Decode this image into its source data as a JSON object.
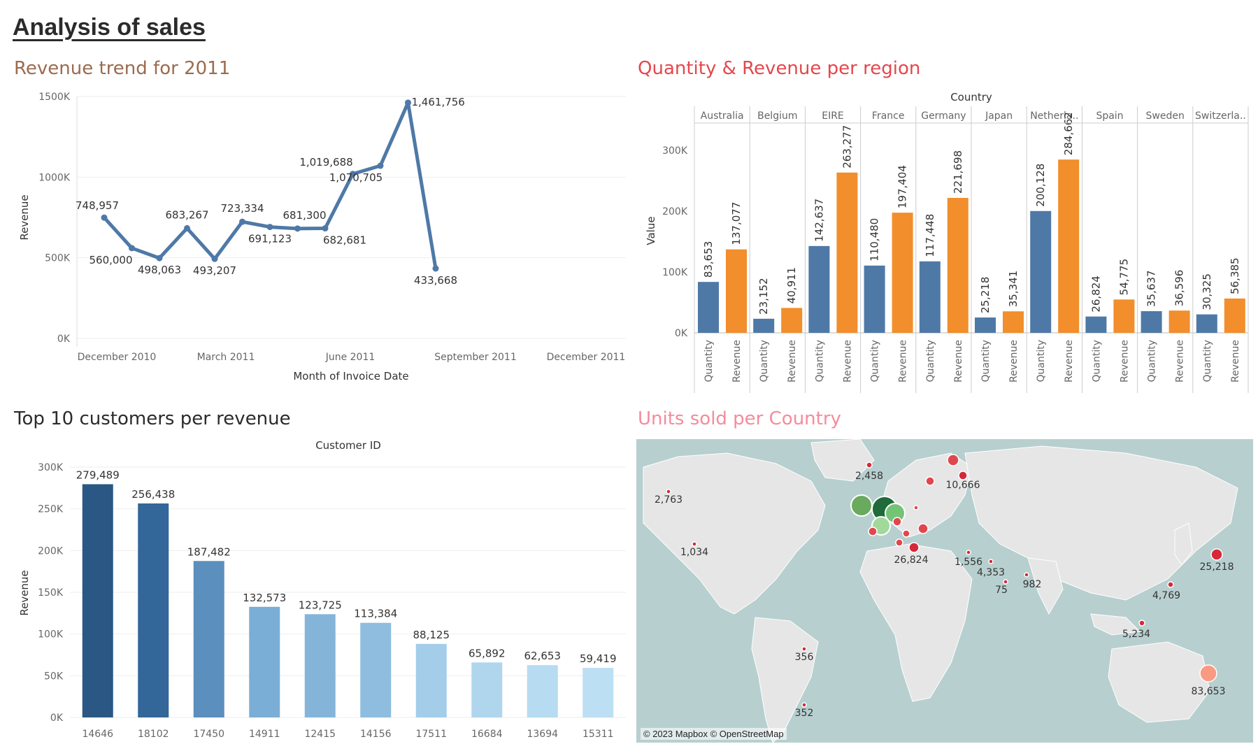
{
  "page": {
    "title": "Analysis of sales"
  },
  "panels": {
    "trend": {
      "title": "Revenue trend for 2011"
    },
    "region": {
      "title": "Quantity & Revenue per region"
    },
    "customers": {
      "title": "Top 10 customers per revenue"
    },
    "map": {
      "title": "Units sold per Country",
      "credit": "© 2023 Mapbox © OpenStreetMap"
    }
  },
  "chart_data": [
    {
      "type": "line",
      "title": "Revenue trend for 2011",
      "xlabel": "Month of Invoice Date",
      "ylabel": "Revenue",
      "ylim": [
        0,
        1500000
      ],
      "y_ticks": [
        "0K",
        "500K",
        "1000K",
        "1500K"
      ],
      "x_ticks": [
        "December 2010",
        "March 2011",
        "June 2011",
        "September 2011",
        "December 2011"
      ],
      "series": [
        {
          "values": [
            748957,
            560000,
            498063,
            683267,
            493207,
            723334,
            691123,
            681300,
            682681,
            1019688,
            1070705,
            1461756,
            433668
          ],
          "labels": [
            "748,957",
            "560,000",
            "498,063",
            "683,267",
            "493,207",
            "723,334",
            "691,123",
            "681,300",
            "682,681",
            "1,019,688",
            "1,070,705",
            "1,461,756",
            "433,668"
          ]
        }
      ],
      "color": "#4e79a7"
    },
    {
      "type": "bar",
      "title": "Quantity & Revenue per region",
      "header": "Country",
      "ylabel": "Value",
      "ylim": [
        0,
        300000
      ],
      "y_ticks": [
        "0K",
        "100K",
        "200K",
        "300K"
      ],
      "categories": [
        "Australia",
        "Belgium",
        "EIRE",
        "France",
        "Germany",
        "Japan",
        "Netherla..",
        "Spain",
        "Sweden",
        "Switzerla.."
      ],
      "measures": [
        "Quantity",
        "Revenue"
      ],
      "series": [
        {
          "name": "Quantity",
          "values": [
            83653,
            23152,
            142637,
            110480,
            117448,
            25218,
            200128,
            26824,
            35637,
            30325
          ],
          "labels": [
            "83,653",
            "23,152",
            "142,637",
            "110,480",
            "117,448",
            "25,218",
            "200,128",
            "26,824",
            "35,637",
            "30,325"
          ]
        },
        {
          "name": "Revenue",
          "values": [
            137077,
            40911,
            263277,
            197404,
            221698,
            35341,
            284662,
            54775,
            36596,
            56385
          ],
          "labels": [
            "137,077",
            "40,911",
            "263,277",
            "197,404",
            "221,698",
            "35,341",
            "284,662",
            "54,775",
            "36,596",
            "56,385"
          ]
        }
      ],
      "colors": {
        "Quantity": "#4e79a7",
        "Revenue": "#f28e2b"
      }
    },
    {
      "type": "bar",
      "title": "Top 10 customers per revenue",
      "header": "Customer ID",
      "ylabel": "Revenue",
      "ylim": [
        0,
        300000
      ],
      "y_ticks": [
        "0K",
        "50K",
        "100K",
        "150K",
        "200K",
        "250K",
        "300K"
      ],
      "categories": [
        "14646",
        "18102",
        "17450",
        "14911",
        "12415",
        "14156",
        "17511",
        "16684",
        "13694",
        "15311"
      ],
      "values": [
        279489,
        256438,
        187482,
        132573,
        123725,
        113384,
        88125,
        65892,
        62653,
        59419
      ],
      "labels": [
        "279,489",
        "256,438",
        "187,482",
        "132,573",
        "123,725",
        "113,384",
        "88,125",
        "65,892",
        "62,653",
        "59,419"
      ],
      "colors": [
        "#2a5783",
        "#336699",
        "#5b8fbd",
        "#7aaed6",
        "#84b5d9",
        "#8ebddf",
        "#a3cde9",
        "#b0d6ee",
        "#b7dbf1",
        "#bcdff3"
      ]
    }
  ],
  "map_points": [
    {
      "label": "2,763"
    },
    {
      "label": "1,034"
    },
    {
      "label": "2,458"
    },
    {
      "label": "10,666"
    },
    {
      "label": "26,824"
    },
    {
      "label": "1,556"
    },
    {
      "label": "4,353"
    },
    {
      "label": "75"
    },
    {
      "label": "982"
    },
    {
      "label": "4,769"
    },
    {
      "label": "25,218"
    },
    {
      "label": "5,234"
    },
    {
      "label": "356"
    },
    {
      "label": "352"
    },
    {
      "label": "83,653"
    }
  ]
}
